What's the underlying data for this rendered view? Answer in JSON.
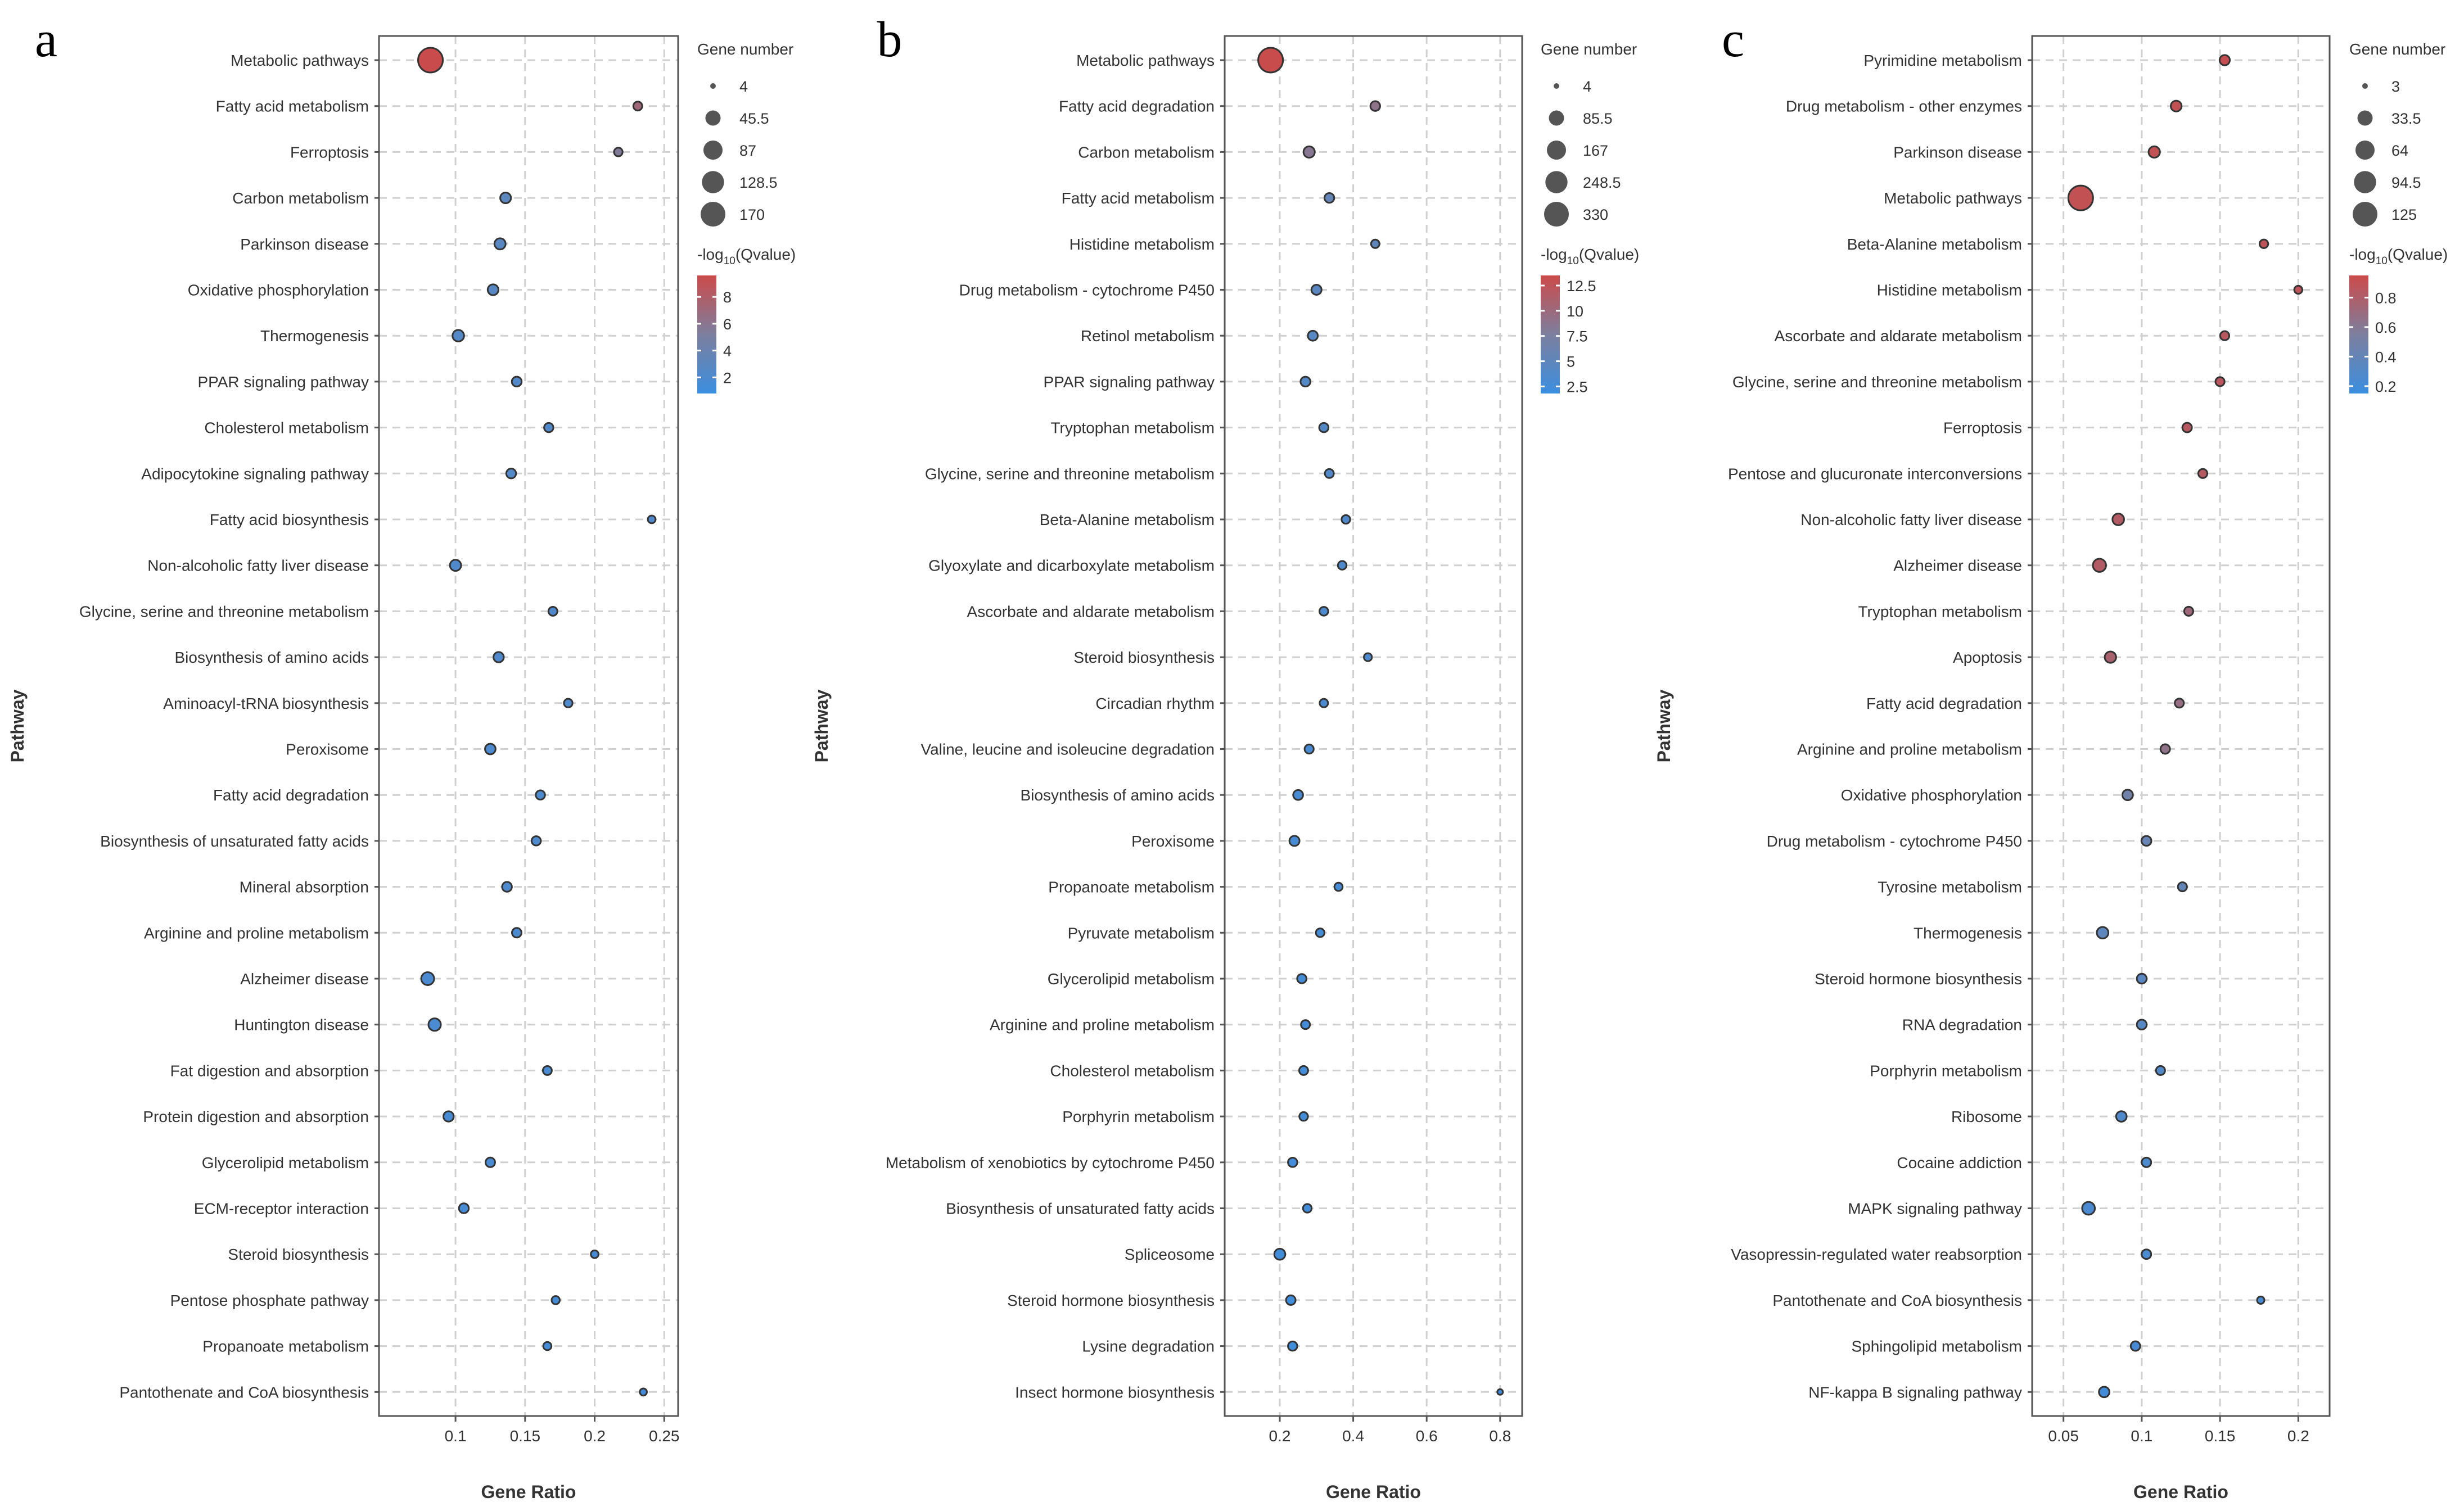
{
  "colors": {
    "low": "#3b8ee0",
    "mid": "#7c7f9e",
    "high": "#cc4a4a",
    "legend_dot": "#555555"
  },
  "chart_data": [
    {
      "type": "scatter",
      "panel": "a",
      "xlabel": "Gene Ratio",
      "ylabel": "Pathway",
      "xlim": [
        0.045,
        0.26
      ],
      "xticks": [
        0.1,
        0.15,
        0.2,
        0.25
      ],
      "xtick_labels": [
        "0.1",
        "0.15",
        "0.2",
        "0.25"
      ],
      "size_legend": {
        "title": "Gene number",
        "values": [
          4,
          45.5,
          87,
          128.5,
          170
        ],
        "labels": [
          "4",
          "45.5",
          "87",
          "128.5",
          "170"
        ]
      },
      "color_legend": {
        "title_prefix": "-log",
        "title_sub": "10",
        "title_suffix": "(Qvalue)",
        "min": 0.8,
        "max": 9.6,
        "ticks": [
          8,
          6,
          4,
          2
        ],
        "tick_labels": [
          "8",
          "6",
          "4",
          "2"
        ]
      },
      "points": [
        {
          "pathway": "Metabolic pathways",
          "ratio": 0.082,
          "genes": 170,
          "q": 9.5
        },
        {
          "pathway": "Fatty acid metabolism",
          "ratio": 0.231,
          "genes": 9,
          "q": 7.2
        },
        {
          "pathway": "Ferroptosis",
          "ratio": 0.217,
          "genes": 8,
          "q": 5.5
        },
        {
          "pathway": "Carbon metabolism",
          "ratio": 0.136,
          "genes": 16,
          "q": 3.0
        },
        {
          "pathway": "Parkinson disease",
          "ratio": 0.132,
          "genes": 18,
          "q": 2.8
        },
        {
          "pathway": "Oxidative phosphorylation",
          "ratio": 0.127,
          "genes": 16,
          "q": 2.8
        },
        {
          "pathway": "Thermogenesis",
          "ratio": 0.102,
          "genes": 20,
          "q": 2.5
        },
        {
          "pathway": "PPAR signaling pathway",
          "ratio": 0.144,
          "genes": 12,
          "q": 2.4
        },
        {
          "pathway": "Cholesterol metabolism",
          "ratio": 0.167,
          "genes": 10,
          "q": 2.4
        },
        {
          "pathway": "Adipocytokine signaling pathway",
          "ratio": 0.14,
          "genes": 12,
          "q": 2.4
        },
        {
          "pathway": "Fatty acid biosynthesis",
          "ratio": 0.241,
          "genes": 6,
          "q": 2.3
        },
        {
          "pathway": "Non-alcoholic fatty liver disease",
          "ratio": 0.1,
          "genes": 18,
          "q": 2.2
        },
        {
          "pathway": "Glycine, serine and threonine metabolism",
          "ratio": 0.17,
          "genes": 9,
          "q": 2.2
        },
        {
          "pathway": "Biosynthesis of amino acids",
          "ratio": 0.131,
          "genes": 14,
          "q": 2.2
        },
        {
          "pathway": "Aminoacyl-tRNA biosynthesis",
          "ratio": 0.181,
          "genes": 8,
          "q": 2.1
        },
        {
          "pathway": "Peroxisome",
          "ratio": 0.125,
          "genes": 15,
          "q": 2.1
        },
        {
          "pathway": "Fatty acid degradation",
          "ratio": 0.161,
          "genes": 10,
          "q": 2.0
        },
        {
          "pathway": "Biosynthesis of unsaturated fatty acids",
          "ratio": 0.158,
          "genes": 10,
          "q": 2.0
        },
        {
          "pathway": "Mineral absorption",
          "ratio": 0.137,
          "genes": 12,
          "q": 2.0
        },
        {
          "pathway": "Arginine and proline metabolism",
          "ratio": 0.144,
          "genes": 11,
          "q": 1.9
        },
        {
          "pathway": "Alzheimer disease",
          "ratio": 0.08,
          "genes": 28,
          "q": 1.9
        },
        {
          "pathway": "Huntington disease",
          "ratio": 0.085,
          "genes": 25,
          "q": 1.8
        },
        {
          "pathway": "Fat digestion and absorption",
          "ratio": 0.166,
          "genes": 9,
          "q": 1.8
        },
        {
          "pathway": "Protein digestion and absorption",
          "ratio": 0.095,
          "genes": 14,
          "q": 1.7
        },
        {
          "pathway": "Glycerolipid metabolism",
          "ratio": 0.125,
          "genes": 11,
          "q": 1.7
        },
        {
          "pathway": "ECM-receptor interaction",
          "ratio": 0.106,
          "genes": 12,
          "q": 1.6
        },
        {
          "pathway": "Steroid biosynthesis",
          "ratio": 0.2,
          "genes": 6,
          "q": 1.6
        },
        {
          "pathway": "Pentose phosphate pathway",
          "ratio": 0.172,
          "genes": 7,
          "q": 1.5
        },
        {
          "pathway": "Propanoate metabolism",
          "ratio": 0.166,
          "genes": 7,
          "q": 1.5
        },
        {
          "pathway": "Pantothenate and CoA biosynthesis",
          "ratio": 0.235,
          "genes": 5,
          "q": 1.4
        }
      ]
    },
    {
      "type": "scatter",
      "panel": "b",
      "xlabel": "Gene Ratio",
      "ylabel": "Pathway",
      "xlim": [
        0.05,
        0.86
      ],
      "xticks": [
        0.2,
        0.4,
        0.6,
        0.8
      ],
      "xtick_labels": [
        "0.2",
        "0.4",
        "0.6",
        "0.8"
      ],
      "size_legend": {
        "title": "Gene number",
        "values": [
          4,
          85.5,
          167,
          248.5,
          330
        ],
        "labels": [
          "4",
          "85.5",
          "167",
          "248.5",
          "330"
        ]
      },
      "color_legend": {
        "title_prefix": "-log",
        "title_sub": "10",
        "title_suffix": "(Qvalue)",
        "min": 1.8,
        "max": 13.5,
        "ticks": [
          12.5,
          10,
          7.5,
          5,
          2.5
        ],
        "tick_labels": [
          "12.5",
          "10",
          "7.5",
          "5",
          "2.5"
        ]
      },
      "points": [
        {
          "pathway": "Metabolic pathways",
          "ratio": 0.175,
          "genes": 330,
          "q": 13.3
        },
        {
          "pathway": "Fatty acid degradation",
          "ratio": 0.46,
          "genes": 19,
          "q": 9.0
        },
        {
          "pathway": "Carbon metabolism",
          "ratio": 0.28,
          "genes": 33,
          "q": 8.5
        },
        {
          "pathway": "Fatty acid metabolism",
          "ratio": 0.335,
          "genes": 19,
          "q": 5.5
        },
        {
          "pathway": "Histidine metabolism",
          "ratio": 0.46,
          "genes": 11,
          "q": 5.0
        },
        {
          "pathway": "Drug metabolism - cytochrome P450",
          "ratio": 0.3,
          "genes": 22,
          "q": 4.6
        },
        {
          "pathway": "Retinol metabolism",
          "ratio": 0.29,
          "genes": 21,
          "q": 4.3
        },
        {
          "pathway": "PPAR signaling pathway",
          "ratio": 0.27,
          "genes": 20,
          "q": 4.1
        },
        {
          "pathway": "Tryptophan metabolism",
          "ratio": 0.32,
          "genes": 16,
          "q": 4.0
        },
        {
          "pathway": "Glycine, serine and threonine metabolism",
          "ratio": 0.335,
          "genes": 14,
          "q": 3.9
        },
        {
          "pathway": "Beta-Alanine metabolism",
          "ratio": 0.38,
          "genes": 12,
          "q": 3.7
        },
        {
          "pathway": "Glyoxylate and dicarboxylate metabolism",
          "ratio": 0.37,
          "genes": 12,
          "q": 3.6
        },
        {
          "pathway": "Ascorbate and aldarate metabolism",
          "ratio": 0.32,
          "genes": 13,
          "q": 3.5
        },
        {
          "pathway": "Steroid biosynthesis",
          "ratio": 0.44,
          "genes": 9,
          "q": 3.4
        },
        {
          "pathway": "Circadian rhythm",
          "ratio": 0.32,
          "genes": 11,
          "q": 3.2
        },
        {
          "pathway": "Valine, leucine and isoleucine degradation",
          "ratio": 0.28,
          "genes": 15,
          "q": 3.1
        },
        {
          "pathway": "Biosynthesis of amino acids",
          "ratio": 0.25,
          "genes": 20,
          "q": 3.0
        },
        {
          "pathway": "Peroxisome",
          "ratio": 0.24,
          "genes": 22,
          "q": 2.9
        },
        {
          "pathway": "Propanoate metabolism",
          "ratio": 0.36,
          "genes": 10,
          "q": 2.8
        },
        {
          "pathway": "Pyruvate metabolism",
          "ratio": 0.31,
          "genes": 12,
          "q": 2.7
        },
        {
          "pathway": "Glycerolipid metabolism",
          "ratio": 0.26,
          "genes": 16,
          "q": 2.6
        },
        {
          "pathway": "Arginine and proline metabolism",
          "ratio": 0.27,
          "genes": 14,
          "q": 2.6
        },
        {
          "pathway": "Cholesterol metabolism",
          "ratio": 0.265,
          "genes": 14,
          "q": 2.5
        },
        {
          "pathway": "Porphyrin metabolism",
          "ratio": 0.265,
          "genes": 12,
          "q": 2.5
        },
        {
          "pathway": "Metabolism of xenobiotics by cytochrome P450",
          "ratio": 0.235,
          "genes": 16,
          "q": 2.4
        },
        {
          "pathway": "Biosynthesis of unsaturated fatty acids",
          "ratio": 0.275,
          "genes": 12,
          "q": 2.4
        },
        {
          "pathway": "Spliceosome",
          "ratio": 0.2,
          "genes": 30,
          "q": 2.3
        },
        {
          "pathway": "Steroid hormone biosynthesis",
          "ratio": 0.23,
          "genes": 18,
          "q": 2.2
        },
        {
          "pathway": "Lysine degradation",
          "ratio": 0.235,
          "genes": 16,
          "q": 2.2
        },
        {
          "pathway": "Insect hormone biosynthesis",
          "ratio": 0.8,
          "genes": 4,
          "q": 2.1
        }
      ]
    },
    {
      "type": "scatter",
      "panel": "c",
      "xlabel": "Gene Ratio",
      "ylabel": "Pathway",
      "xlim": [
        0.03,
        0.22
      ],
      "xticks": [
        0.05,
        0.1,
        0.15,
        0.2
      ],
      "xtick_labels": [
        "0.05",
        "0.1",
        "0.15",
        "0.2"
      ],
      "size_legend": {
        "title": "Gene number",
        "values": [
          3,
          33.5,
          64,
          94.5,
          125
        ],
        "labels": [
          "3",
          "33.5",
          "64",
          "94.5",
          "125"
        ]
      },
      "color_legend": {
        "title_prefix": "-log",
        "title_sub": "10",
        "title_suffix": "(Qvalue)",
        "min": 0.15,
        "max": 0.95,
        "ticks": [
          0.8,
          0.6,
          0.4,
          0.2
        ],
        "tick_labels": [
          "0.8",
          "0.6",
          "0.4",
          "0.2"
        ]
      },
      "points": [
        {
          "pathway": "Pyrimidine metabolism",
          "ratio": 0.153,
          "genes": 10,
          "q": 0.92
        },
        {
          "pathway": "Drug metabolism - other enzymes",
          "ratio": 0.122,
          "genes": 12,
          "q": 0.9
        },
        {
          "pathway": "Parkinson disease",
          "ratio": 0.108,
          "genes": 14,
          "q": 0.9
        },
        {
          "pathway": "Metabolic pathways",
          "ratio": 0.061,
          "genes": 125,
          "q": 0.9
        },
        {
          "pathway": "Beta-Alanine metabolism",
          "ratio": 0.178,
          "genes": 6,
          "q": 0.88
        },
        {
          "pathway": "Histidine metabolism",
          "ratio": 0.2,
          "genes": 5,
          "q": 0.88
        },
        {
          "pathway": "Ascorbate and aldarate metabolism",
          "ratio": 0.153,
          "genes": 7,
          "q": 0.86
        },
        {
          "pathway": "Glycine, serine and threonine metabolism",
          "ratio": 0.15,
          "genes": 7,
          "q": 0.86
        },
        {
          "pathway": "Ferroptosis",
          "ratio": 0.129,
          "genes": 8,
          "q": 0.84
        },
        {
          "pathway": "Pentose and glucuronate interconversions",
          "ratio": 0.139,
          "genes": 7,
          "q": 0.83
        },
        {
          "pathway": "Non-alcoholic fatty liver disease",
          "ratio": 0.085,
          "genes": 15,
          "q": 0.82
        },
        {
          "pathway": "Alzheimer disease",
          "ratio": 0.073,
          "genes": 22,
          "q": 0.82
        },
        {
          "pathway": "Tryptophan metabolism",
          "ratio": 0.13,
          "genes": 7,
          "q": 0.72
        },
        {
          "pathway": "Apoptosis",
          "ratio": 0.08,
          "genes": 14,
          "q": 0.78
        },
        {
          "pathway": "Fatty acid degradation",
          "ratio": 0.124,
          "genes": 7,
          "q": 0.68
        },
        {
          "pathway": "Arginine and proline metabolism",
          "ratio": 0.115,
          "genes": 8,
          "q": 0.65
        },
        {
          "pathway": "Oxidative phosphorylation",
          "ratio": 0.091,
          "genes": 11,
          "q": 0.48
        },
        {
          "pathway": "Drug metabolism - cytochrome P450",
          "ratio": 0.103,
          "genes": 9,
          "q": 0.42
        },
        {
          "pathway": "Tyrosine metabolism",
          "ratio": 0.126,
          "genes": 7,
          "q": 0.4
        },
        {
          "pathway": "Thermogenesis",
          "ratio": 0.075,
          "genes": 15,
          "q": 0.36
        },
        {
          "pathway": "Steroid hormone biosynthesis",
          "ratio": 0.1,
          "genes": 9,
          "q": 0.34
        },
        {
          "pathway": "RNA degradation",
          "ratio": 0.1,
          "genes": 9,
          "q": 0.32
        },
        {
          "pathway": "Porphyrin metabolism",
          "ratio": 0.112,
          "genes": 7,
          "q": 0.3
        },
        {
          "pathway": "Ribosome",
          "ratio": 0.087,
          "genes": 11,
          "q": 0.28
        },
        {
          "pathway": "Cocaine addiction",
          "ratio": 0.103,
          "genes": 8,
          "q": 0.26
        },
        {
          "pathway": "MAPK signaling pathway",
          "ratio": 0.066,
          "genes": 20,
          "q": 0.25
        },
        {
          "pathway": "Vasopressin-regulated water reabsorption",
          "ratio": 0.103,
          "genes": 8,
          "q": 0.24
        },
        {
          "pathway": "Pantothenate and CoA biosynthesis",
          "ratio": 0.176,
          "genes": 4,
          "q": 0.23
        },
        {
          "pathway": "Sphingolipid metabolism",
          "ratio": 0.096,
          "genes": 8,
          "q": 0.22
        },
        {
          "pathway": "NF-kappa B signaling pathway",
          "ratio": 0.076,
          "genes": 11,
          "q": 0.2
        }
      ]
    }
  ]
}
